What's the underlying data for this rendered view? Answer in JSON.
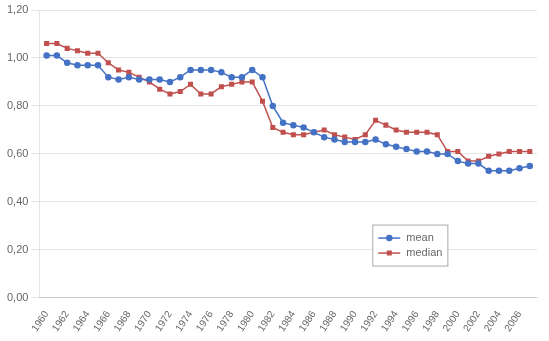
{
  "chart_data": {
    "type": "line",
    "x": [
      1960,
      1961,
      1962,
      1963,
      1964,
      1965,
      1966,
      1967,
      1968,
      1969,
      1970,
      1971,
      1972,
      1973,
      1974,
      1975,
      1976,
      1977,
      1978,
      1979,
      1980,
      1981,
      1982,
      1983,
      1984,
      1985,
      1986,
      1987,
      1988,
      1989,
      1990,
      1991,
      1992,
      1993,
      1994,
      1995,
      1996,
      1997,
      1998,
      1999,
      2000,
      2001,
      2002,
      2003,
      2004,
      2005,
      2006,
      2007
    ],
    "series": [
      {
        "name": "mean",
        "color": "#4472C4",
        "marker": "circle",
        "values": [
          1.01,
          1.01,
          0.98,
          0.97,
          0.97,
          0.97,
          0.92,
          0.91,
          0.92,
          0.91,
          0.91,
          0.91,
          0.9,
          0.92,
          0.95,
          0.95,
          0.95,
          0.94,
          0.92,
          0.92,
          0.95,
          0.92,
          0.8,
          0.73,
          0.72,
          0.71,
          0.69,
          0.67,
          0.66,
          0.65,
          0.65,
          0.65,
          0.66,
          0.64,
          0.63,
          0.62,
          0.61,
          0.61,
          0.6,
          0.6,
          0.57,
          0.56,
          0.56,
          0.53,
          0.53,
          0.53,
          0.54,
          0.55
        ]
      },
      {
        "name": "median",
        "color": "#C0504D",
        "marker": "square",
        "values": [
          1.06,
          1.06,
          1.04,
          1.03,
          1.02,
          1.02,
          0.98,
          0.95,
          0.94,
          0.92,
          0.9,
          0.87,
          0.85,
          0.86,
          0.89,
          0.85,
          0.85,
          0.88,
          0.89,
          0.9,
          0.9,
          0.82,
          0.71,
          0.69,
          0.68,
          0.68,
          0.69,
          0.7,
          0.68,
          0.67,
          0.66,
          0.68,
          0.74,
          0.72,
          0.7,
          0.69,
          0.69,
          0.69,
          0.68,
          0.61,
          0.61,
          0.57,
          0.57,
          0.59,
          0.6,
          0.61,
          0.61,
          0.61
        ]
      }
    ],
    "xlim": [
      1959.3,
      2007.7
    ],
    "xticks": [
      1960,
      1962,
      1964,
      1966,
      1968,
      1970,
      1972,
      1974,
      1976,
      1978,
      1980,
      1982,
      1984,
      1986,
      1988,
      1990,
      1992,
      1994,
      1996,
      1998,
      2000,
      2002,
      2004,
      2006
    ],
    "ylim": [
      0.0,
      1.2
    ],
    "yticks": [
      {
        "value": 0.0,
        "label": "0,00"
      },
      {
        "value": 0.2,
        "label": "0,20"
      },
      {
        "value": 0.4,
        "label": "0,40"
      },
      {
        "value": 0.6,
        "label": "0,60"
      },
      {
        "value": 0.8,
        "label": "0,80"
      },
      {
        "value": 1.0,
        "label": "1,00"
      },
      {
        "value": 1.2,
        "label": "1,20"
      }
    ],
    "grid": "y",
    "legend": "lower right"
  }
}
